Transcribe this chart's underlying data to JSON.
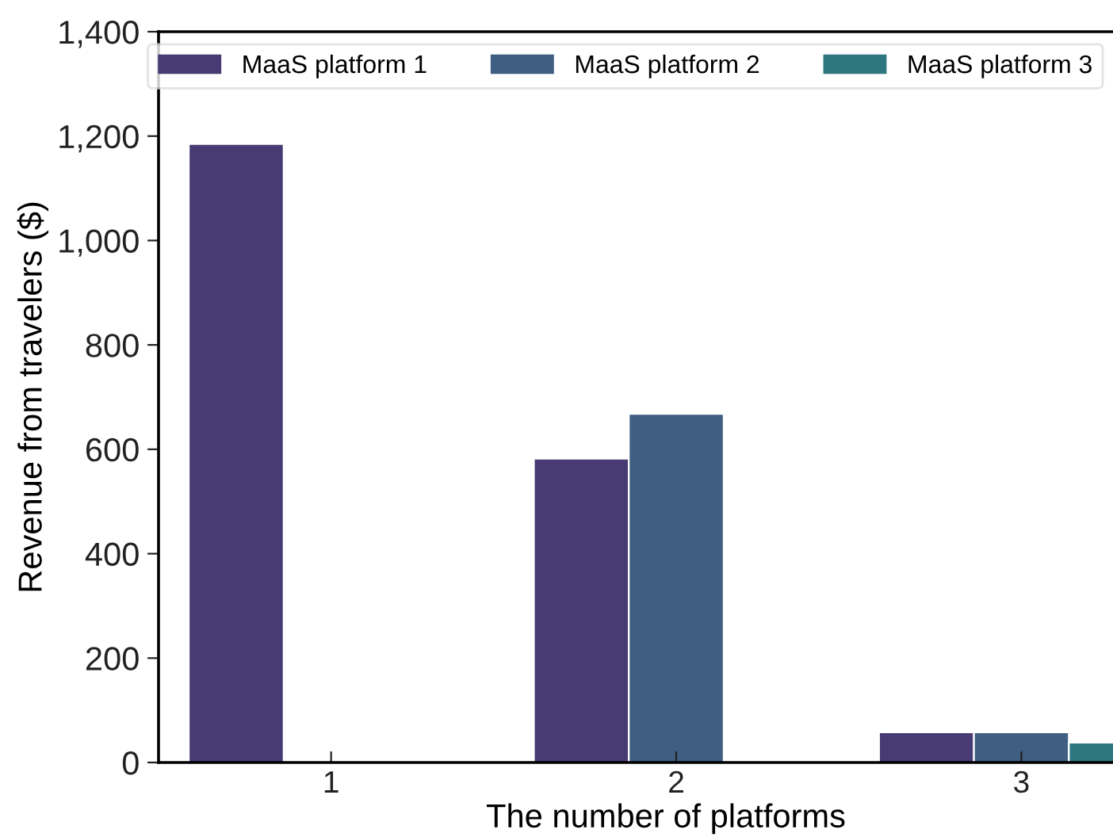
{
  "chart_data": {
    "type": "bar",
    "xlabel": "The number of platforms",
    "ylabel": "Revenue from travelers ($)",
    "categories": [
      "1",
      "2",
      "3"
    ],
    "series": [
      {
        "name": "MaaS platform 1",
        "color": "#483a72",
        "values": [
          1185,
          582,
          58
        ]
      },
      {
        "name": "MaaS platform 2",
        "color": "#3f5e82",
        "values": [
          null,
          668,
          58
        ]
      },
      {
        "name": "MaaS platform 3",
        "color": "#2e7780",
        "values": [
          null,
          null,
          38
        ]
      }
    ],
    "ylim": [
      0,
      1400
    ],
    "yticks": [
      0,
      200,
      400,
      600,
      800,
      {
        "value": 1000,
        "label": "1,000"
      },
      {
        "value": 1200,
        "label": "1,200"
      },
      {
        "value": 1400,
        "label": "1,400"
      }
    ],
    "grid": false,
    "legend": "top"
  }
}
